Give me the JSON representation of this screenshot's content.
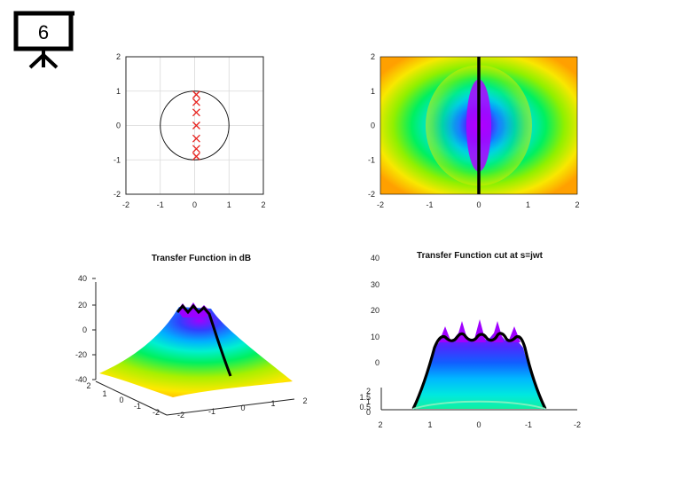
{
  "slide": {
    "number": "6",
    "icon": "presentation-board-icon"
  },
  "colors": {
    "zero_marker": "#e8231f",
    "axis": "#222222",
    "grid": "#d9d9d9",
    "curve": "#000000"
  },
  "chart_data": [
    {
      "type": "scatter",
      "title": "",
      "xlabel": "",
      "ylabel": "",
      "xlim": [
        -2,
        2
      ],
      "ylim": [
        -2,
        2
      ],
      "x_ticks": [
        "-2",
        "-1",
        "0",
        "1",
        "2"
      ],
      "y_ticks": [
        "-2",
        "-1",
        "0",
        "1",
        "2"
      ],
      "grid": true,
      "unit_circle": true,
      "series": [
        {
          "marker": "x",
          "x": [
            0.05,
            0.05,
            0.05,
            0.05,
            0.05,
            0.05,
            0.05
          ],
          "y": [
            0.9,
            0.68,
            0.38,
            0.0,
            -0.38,
            -0.68,
            -0.9
          ]
        }
      ]
    },
    {
      "type": "heatmap",
      "title": "",
      "xlim": [
        -2,
        2
      ],
      "ylim": [
        -2,
        2
      ],
      "x_ticks": [
        "-2",
        "-1",
        "0",
        "1",
        "2"
      ],
      "y_ticks": [
        "-2",
        "-1",
        "0",
        "1",
        "2"
      ],
      "colormap": "hsv",
      "cut_line": {
        "x": 0
      }
    },
    {
      "type": "surface",
      "title": "Transfer Function in dB",
      "zlim": [
        -40,
        40
      ],
      "x_ticks": [
        "-2",
        "-1",
        "0",
        "1",
        "2"
      ],
      "y_ticks": [
        "2",
        "1",
        "0",
        "-1",
        "-2"
      ],
      "z_ticks": [
        "40",
        "20",
        "0",
        "-20",
        "-40"
      ]
    },
    {
      "type": "line",
      "title": "Transfer Function cut at s=jwt",
      "x_ticks": [
        "2",
        "1",
        "0",
        "-1",
        "-2"
      ],
      "z_ticks": [
        "40",
        "30",
        "20",
        "10",
        "0"
      ],
      "y_ticks": [
        "2",
        "1.5",
        "1",
        "0.5",
        "0"
      ]
    }
  ]
}
